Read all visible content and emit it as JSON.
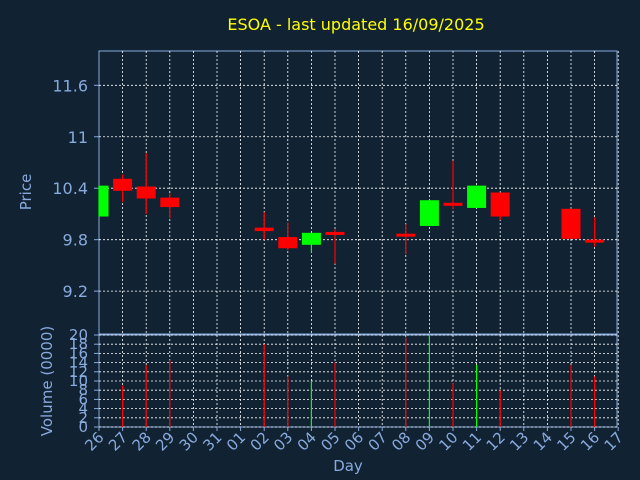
{
  "chart_data": [
    {
      "type": "candlestick",
      "title": "ESOA - last updated 16/09/2025",
      "ylabel": "Price",
      "ylim": [
        8.7,
        12.0
      ],
      "yticks": [
        9.2,
        9.8,
        10.4,
        11,
        11.6
      ],
      "grid": true,
      "categories": [
        "26",
        "27",
        "28",
        "29",
        "30",
        "31",
        "01",
        "02",
        "03",
        "04",
        "05",
        "06",
        "07",
        "08",
        "09",
        "10",
        "11",
        "12",
        "13",
        "14",
        "15",
        "16",
        "17"
      ],
      "candles": [
        {
          "x": "26",
          "open": 10.07,
          "close": 10.43,
          "high": 10.43,
          "low": 10.07
        },
        {
          "x": "27",
          "open": 10.51,
          "close": 10.37,
          "high": 10.56,
          "low": 10.24
        },
        {
          "x": "28",
          "open": 10.42,
          "close": 10.28,
          "high": 10.81,
          "low": 10.1
        },
        {
          "x": "29",
          "open": 10.29,
          "close": 10.18,
          "high": 10.34,
          "low": 10.05
        },
        {
          "x": "02",
          "open": 9.94,
          "close": 9.9,
          "high": 10.12,
          "low": 9.8
        },
        {
          "x": "03",
          "open": 9.83,
          "close": 9.7,
          "high": 10.0,
          "low": 9.68
        },
        {
          "x": "04",
          "open": 9.74,
          "close": 9.88,
          "high": 9.88,
          "low": 9.65
        },
        {
          "x": "05",
          "open": 9.89,
          "close": 9.88,
          "high": 9.92,
          "low": 9.52
        },
        {
          "x": "08",
          "open": 9.87,
          "close": 9.86,
          "high": 9.98,
          "low": 9.63
        },
        {
          "x": "09",
          "open": 9.96,
          "close": 10.26,
          "high": 10.26,
          "low": 9.96
        },
        {
          "x": "10",
          "open": 10.23,
          "close": 10.2,
          "high": 10.72,
          "low": 10.16
        },
        {
          "x": "11",
          "open": 10.17,
          "close": 10.43,
          "high": 10.43,
          "low": 10.17
        },
        {
          "x": "12",
          "open": 10.35,
          "close": 10.07,
          "high": 10.35,
          "low": 10.03
        },
        {
          "x": "15",
          "open": 10.16,
          "close": 9.81,
          "high": 10.16,
          "low": 9.81
        },
        {
          "x": "16",
          "open": 9.8,
          "close": 9.78,
          "high": 10.06,
          "low": 9.72
        }
      ]
    },
    {
      "type": "bar",
      "xlabel": "Day",
      "ylabel": "Volume (0000)",
      "ylim": [
        0,
        20
      ],
      "yticks": [
        0,
        2,
        4,
        6,
        8,
        10,
        12,
        14,
        16,
        18,
        20
      ],
      "grid": true,
      "categories": [
        "26",
        "27",
        "28",
        "29",
        "30",
        "31",
        "01",
        "02",
        "03",
        "04",
        "05",
        "06",
        "07",
        "08",
        "09",
        "10",
        "11",
        "12",
        "13",
        "14",
        "15",
        "16",
        "17"
      ],
      "bars": [
        {
          "x": "27",
          "value": 9,
          "color": "#ff0000"
        },
        {
          "x": "28",
          "value": 13.5,
          "color": "#ff0000"
        },
        {
          "x": "29",
          "value": 14.5,
          "color": "#ff0000"
        },
        {
          "x": "02",
          "value": 18,
          "color": "#ff0000"
        },
        {
          "x": "03",
          "value": 11,
          "color": "#ff0000"
        },
        {
          "x": "04",
          "value": 10,
          "color": "#00ff00"
        },
        {
          "x": "05",
          "value": 14,
          "color": "#ff0000"
        },
        {
          "x": "08",
          "value": 19.5,
          "color": "#ff0000"
        },
        {
          "x": "09",
          "value": 20,
          "color": "#00ff00"
        },
        {
          "x": "10",
          "value": 9.5,
          "color": "#ff0000"
        },
        {
          "x": "11",
          "value": 13.5,
          "color": "#00ff00"
        },
        {
          "x": "12",
          "value": 8,
          "color": "#ff0000"
        },
        {
          "x": "15",
          "value": 13.5,
          "color": "#ff0000"
        },
        {
          "x": "16",
          "value": 11,
          "color": "#ff0000"
        }
      ]
    }
  ],
  "colors": {
    "background": "#112233",
    "title": "#ffff00",
    "axis": "#88aadd",
    "grid": "#ffffff",
    "up": "#00ff00",
    "down": "#ff0000"
  }
}
